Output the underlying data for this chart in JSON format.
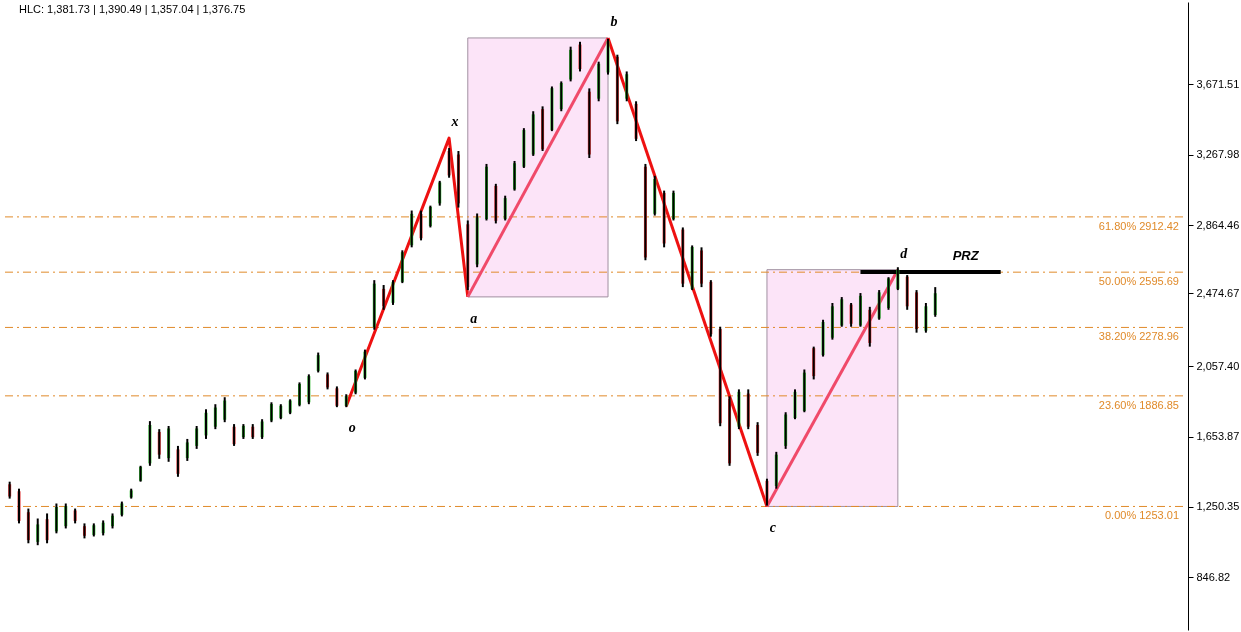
{
  "chart_data": {
    "type": "candlestick",
    "tick_labels": "y",
    "ylim": [
      545,
      4144
    ],
    "yticks": [
      846.82,
      {
        "value": 1250.35,
        "label": "1,250.35"
      },
      {
        "value": 1653.87,
        "label": "1,653.87"
      },
      {
        "value": 2057.4,
        "label": "2,057.40"
      },
      {
        "value": 2474.67,
        "label": "2,474.67"
      },
      {
        "value": 2864.46,
        "label": "2,864.46"
      },
      {
        "value": 3267.98,
        "label": "3,267.98"
      },
      {
        "value": 3671.51,
        "label": "3,671.51"
      }
    ],
    "categories": [
      null,
      null,
      null,
      null,
      null,
      null,
      null,
      null,
      null,
      null,
      null,
      null,
      null,
      null,
      null,
      null,
      null,
      null,
      null,
      null,
      null,
      null,
      null,
      null,
      null,
      null,
      null,
      null,
      null,
      null,
      null,
      null,
      null,
      null,
      null,
      null,
      null,
      null,
      null,
      null,
      null,
      null,
      null,
      null,
      null,
      null,
      null,
      null,
      null,
      null,
      null,
      null,
      null,
      null,
      null,
      null,
      null,
      null,
      null,
      null,
      null,
      null,
      null,
      null,
      null,
      null,
      null,
      null,
      null,
      null,
      null,
      null,
      null,
      null,
      null,
      null,
      null,
      null,
      null,
      null,
      null,
      null,
      null,
      null,
      null,
      null,
      null,
      null,
      null,
      null,
      null,
      null,
      null,
      null,
      null,
      null,
      null,
      null,
      null,
      null,
      null,
      null,
      null,
      null,
      null,
      null,
      null,
      null,
      null,
      null,
      null,
      null,
      null,
      null,
      null,
      null,
      null,
      null,
      null,
      null,
      null,
      null,
      null,
      null,
      null,
      null
    ],
    "ohlc": [
      [
        1380,
        1395,
        1298,
        1310
      ],
      [
        1340,
        1355,
        1156,
        1170
      ],
      [
        1220,
        1241,
        1042,
        1060
      ],
      [
        1050,
        1184,
        1031,
        1150
      ],
      [
        1180,
        1213,
        1042,
        1060
      ],
      [
        1110,
        1270,
        1099,
        1250
      ],
      [
        1140,
        1270,
        1127,
        1255
      ],
      [
        1230,
        1241,
        1156,
        1170
      ],
      [
        1140,
        1156,
        1070,
        1085
      ],
      [
        1090,
        1156,
        1081,
        1145
      ],
      [
        1100,
        1173,
        1087,
        1160
      ],
      [
        1140,
        1213,
        1127,
        1200
      ],
      [
        1205,
        1281,
        1196,
        1270
      ],
      [
        1305,
        1355,
        1298,
        1345
      ],
      [
        1400,
        1486,
        1395,
        1480
      ],
      [
        1500,
        1742,
        1486,
        1720
      ],
      [
        1680,
        1696,
        1526,
        1550
      ],
      [
        1530,
        1714,
        1509,
        1700
      ],
      [
        1580,
        1600,
        1423,
        1440
      ],
      [
        1530,
        1640,
        1514,
        1620
      ],
      [
        1600,
        1714,
        1583,
        1700
      ],
      [
        1660,
        1810,
        1640,
        1790
      ],
      [
        1710,
        1839,
        1696,
        1820
      ],
      [
        1750,
        1879,
        1736,
        1860
      ],
      [
        1710,
        1725,
        1600,
        1610
      ],
      [
        1650,
        1725,
        1640,
        1715
      ],
      [
        1710,
        1725,
        1640,
        1650
      ],
      [
        1650,
        1753,
        1640,
        1740
      ],
      [
        1745,
        1850,
        1736,
        1840
      ],
      [
        1760,
        1839,
        1753,
        1830
      ],
      [
        1790,
        1867,
        1782,
        1860
      ],
      [
        1835,
        1964,
        1827,
        1955
      ],
      [
        1850,
        2010,
        1839,
        2000
      ],
      [
        2030,
        2135,
        2021,
        2120
      ],
      [
        2010,
        2021,
        1924,
        1935
      ],
      [
        1930,
        1941,
        1822,
        1830
      ],
      [
        1830,
        1896,
        1822,
        1885
      ],
      [
        1905,
        2038,
        1896,
        2030
      ],
      [
        1990,
        2152,
        1981,
        2140
      ],
      [
        2280,
        2550,
        2266,
        2530
      ],
      [
        2500,
        2522,
        2380,
        2400
      ],
      [
        2420,
        2550,
        2408,
        2540
      ],
      [
        2540,
        2721,
        2533,
        2710
      ],
      [
        2750,
        2949,
        2738,
        2930
      ],
      [
        2930,
        2949,
        2778,
        2790
      ],
      [
        2860,
        2977,
        2852,
        2970
      ],
      [
        2990,
        3119,
        2977,
        3110
      ],
      [
        3290,
        3307,
        3137,
        3150
      ],
      [
        3270,
        3290,
        2966,
        2990
      ],
      [
        2870,
        2892,
        2493,
        2510
      ],
      [
        2640,
        2932,
        2624,
        2910
      ],
      [
        2900,
        3216,
        2892,
        3200
      ],
      [
        3090,
        3102,
        2875,
        2890
      ],
      [
        2900,
        3034,
        2892,
        3020
      ],
      [
        3070,
        3233,
        3063,
        3220
      ],
      [
        3200,
        3421,
        3193,
        3410
      ],
      [
        3270,
        3518,
        3262,
        3500
      ],
      [
        3530,
        3546,
        3290,
        3300
      ],
      [
        3410,
        3660,
        3404,
        3650
      ],
      [
        3530,
        3689,
        3518,
        3680
      ],
      [
        3700,
        3888,
        3689,
        3870
      ],
      [
        3900,
        3916,
        3746,
        3760
      ],
      [
        3630,
        3649,
        3250,
        3270
      ],
      [
        3590,
        3802,
        3575,
        3790
      ],
      [
        3740,
        3933,
        3728,
        3920
      ],
      [
        3830,
        3842,
        3444,
        3460
      ],
      [
        3590,
        3746,
        3575,
        3730
      ],
      [
        3560,
        3575,
        3347,
        3360
      ],
      [
        3200,
        3216,
        2664,
        2680
      ],
      [
        2930,
        3148,
        2920,
        3130
      ],
      [
        3050,
        3063,
        2738,
        2760
      ],
      [
        2900,
        3063,
        2892,
        3050
      ],
      [
        2840,
        2852,
        2510,
        2530
      ],
      [
        2500,
        2749,
        2493,
        2740
      ],
      [
        2720,
        2738,
        2510,
        2530
      ],
      [
        2540,
        2550,
        2226,
        2240
      ],
      [
        2270,
        2283,
        1713,
        1730
      ],
      [
        1870,
        1884,
        1486,
        1500
      ],
      [
        1710,
        1924,
        1696,
        1910
      ],
      [
        1900,
        1924,
        1696,
        1710
      ],
      [
        1720,
        1736,
        1543,
        1560
      ],
      [
        1400,
        1412,
        1258,
        1270
      ],
      [
        1370,
        1566,
        1355,
        1550
      ],
      [
        1600,
        1793,
        1583,
        1780
      ],
      [
        1760,
        1924,
        1753,
        1910
      ],
      [
        1800,
        2038,
        1793,
        2020
      ],
      [
        2160,
        2169,
        1981,
        2000
      ],
      [
        2120,
        2323,
        2112,
        2310
      ],
      [
        2220,
        2419,
        2209,
        2400
      ],
      [
        2290,
        2453,
        2283,
        2440
      ],
      [
        2410,
        2419,
        2283,
        2300
      ],
      [
        2290,
        2476,
        2283,
        2460
      ],
      [
        2380,
        2397,
        2169,
        2190
      ],
      [
        2330,
        2493,
        2323,
        2480
      ],
      [
        2390,
        2567,
        2380,
        2560
      ],
      [
        2500,
        2624,
        2493,
        2610
      ],
      [
        2570,
        2579,
        2380,
        2400
      ],
      [
        2480,
        2493,
        2249,
        2270
      ],
      [
        2260,
        2419,
        2249,
        2400
      ],
      [
        2350,
        2510,
        2340,
        2475
      ],
      null,
      null,
      null,
      null,
      null,
      null,
      null,
      null,
      null,
      null,
      null,
      null,
      null,
      null,
      null,
      null,
      null,
      null,
      null,
      null,
      null,
      null,
      null,
      null,
      null,
      null
    ],
    "series": [
      {
        "type": "line",
        "color": "#ee1111",
        "values": [
          null,
          null,
          null,
          null,
          null,
          null,
          null,
          null,
          null,
          null,
          null,
          null,
          null,
          null,
          null,
          null,
          null,
          null,
          null,
          null,
          null,
          null,
          null,
          null,
          null,
          null,
          null,
          null,
          null,
          null,
          null,
          null,
          null,
          null,
          null,
          null,
          1827,
          null,
          null,
          null,
          null,
          null,
          null,
          null,
          null,
          null,
          null,
          3364,
          null,
          2454,
          null,
          null,
          null,
          null,
          null,
          null,
          null,
          null,
          null,
          null,
          null,
          null,
          null,
          null,
          null,
          null,
          null,
          null,
          null,
          null,
          null,
          null,
          null,
          null,
          null,
          null,
          null,
          null,
          null,
          null,
          null,
          null,
          null,
          null,
          null,
          null,
          null,
          null,
          null,
          null,
          null,
          null,
          null,
          null,
          null,
          null,
          null,
          null,
          null,
          null,
          null,
          null,
          null,
          null,
          null,
          null,
          null,
          null,
          null,
          null,
          null,
          null,
          null,
          null,
          null,
          null,
          null,
          null,
          null,
          null,
          null,
          null,
          null,
          null,
          null,
          null
        ]
      },
      {
        "type": "line",
        "color": "#f04a6a",
        "values": [
          null,
          null,
          null,
          null,
          null,
          null,
          null,
          null,
          null,
          null,
          null,
          null,
          null,
          null,
          null,
          null,
          null,
          null,
          null,
          null,
          null,
          null,
          null,
          null,
          null,
          null,
          null,
          null,
          null,
          null,
          null,
          null,
          null,
          null,
          null,
          null,
          null,
          null,
          null,
          null,
          null,
          null,
          null,
          null,
          null,
          null,
          null,
          null,
          null,
          2454,
          null,
          null,
          null,
          null,
          null,
          null,
          null,
          null,
          null,
          null,
          null,
          null,
          null,
          null,
          3938,
          null,
          null,
          null,
          null,
          null,
          null,
          null,
          null,
          null,
          null,
          null,
          null,
          null,
          null,
          null,
          null,
          null,
          null,
          null,
          null,
          null,
          null,
          null,
          null,
          null,
          null,
          null,
          null,
          null,
          null,
          null,
          null,
          null,
          null,
          null,
          null,
          null,
          null,
          null,
          null,
          null,
          null,
          null,
          null,
          null,
          null,
          null,
          null,
          null,
          null,
          null,
          null,
          null,
          null,
          null,
          null,
          null,
          null,
          null,
          null,
          null
        ]
      },
      {
        "type": "line",
        "color": "#ee1111",
        "values": [
          null,
          null,
          null,
          null,
          null,
          null,
          null,
          null,
          null,
          null,
          null,
          null,
          null,
          null,
          null,
          null,
          null,
          null,
          null,
          null,
          null,
          null,
          null,
          null,
          null,
          null,
          null,
          null,
          null,
          null,
          null,
          null,
          null,
          null,
          null,
          null,
          null,
          null,
          null,
          null,
          null,
          null,
          null,
          null,
          null,
          null,
          null,
          null,
          null,
          null,
          null,
          null,
          null,
          null,
          null,
          null,
          null,
          null,
          null,
          null,
          null,
          null,
          null,
          null,
          3938,
          null,
          null,
          null,
          null,
          null,
          null,
          null,
          null,
          null,
          null,
          null,
          null,
          null,
          null,
          null,
          null,
          1253,
          null,
          null,
          null,
          null,
          null,
          null,
          null,
          null,
          null,
          null,
          null,
          null,
          null,
          null,
          null,
          null,
          null,
          null,
          null,
          null,
          null,
          null,
          null,
          null,
          null,
          null,
          null,
          null,
          null,
          null,
          null,
          null,
          null,
          null,
          null,
          null,
          null,
          null,
          null,
          null,
          null,
          null,
          null,
          null
        ]
      },
      {
        "type": "line",
        "color": "#f04a6a",
        "values": [
          null,
          null,
          null,
          null,
          null,
          null,
          null,
          null,
          null,
          null,
          null,
          null,
          null,
          null,
          null,
          null,
          null,
          null,
          null,
          null,
          null,
          null,
          null,
          null,
          null,
          null,
          null,
          null,
          null,
          null,
          null,
          null,
          null,
          null,
          null,
          null,
          null,
          null,
          null,
          null,
          null,
          null,
          null,
          null,
          null,
          null,
          null,
          null,
          null,
          null,
          null,
          null,
          null,
          null,
          null,
          null,
          null,
          null,
          null,
          null,
          null,
          null,
          null,
          null,
          null,
          null,
          null,
          null,
          null,
          null,
          null,
          null,
          null,
          null,
          null,
          null,
          null,
          null,
          null,
          null,
          null,
          1253,
          null,
          null,
          null,
          null,
          null,
          null,
          null,
          null,
          null,
          null,
          null,
          null,
          null,
          2610,
          null,
          null,
          null,
          null,
          null,
          null,
          null,
          null,
          null,
          null,
          null,
          null,
          null,
          null,
          null,
          null,
          null,
          null,
          null,
          null,
          null,
          null,
          null,
          null,
          null,
          null,
          null,
          null,
          null,
          null
        ]
      },
      {
        "type": "line",
        "name": "PRZ",
        "color": "#000000",
        "values": [
          null,
          null,
          null,
          null,
          null,
          null,
          null,
          null,
          null,
          null,
          null,
          null,
          null,
          null,
          null,
          null,
          null,
          null,
          null,
          null,
          null,
          null,
          null,
          null,
          null,
          null,
          null,
          null,
          null,
          null,
          null,
          null,
          null,
          null,
          null,
          null,
          null,
          null,
          null,
          null,
          null,
          null,
          null,
          null,
          null,
          null,
          null,
          null,
          null,
          null,
          null,
          null,
          null,
          null,
          null,
          null,
          null,
          null,
          null,
          null,
          null,
          null,
          null,
          null,
          null,
          null,
          null,
          null,
          null,
          null,
          null,
          null,
          null,
          null,
          null,
          null,
          null,
          null,
          null,
          null,
          null,
          null,
          null,
          null,
          null,
          null,
          null,
          null,
          null,
          null,
          null,
          2596,
          2596,
          2596,
          2596,
          2596,
          2596,
          2596,
          2596,
          2596,
          2596,
          2596,
          2596,
          2596,
          2596,
          2596,
          2596,
          null,
          null,
          null,
          null,
          null,
          null,
          null,
          null,
          null,
          null,
          null,
          null,
          null,
          null,
          null,
          null,
          null,
          null,
          null
        ]
      }
    ],
    "ref_lines": [
      {
        "axis": "y",
        "value": 2912.42,
        "label": "61.80% 2912.42",
        "color": "#e08a2a",
        "line_style": "dashed"
      },
      {
        "axis": "y",
        "value": 2595.69,
        "label": "50.00% 2595.69",
        "color": "#e08a2a",
        "line_style": "dashed"
      },
      {
        "axis": "y",
        "value": 2278.96,
        "label": "38.20% 2278.96",
        "color": "#e08a2a",
        "line_style": "dashed"
      },
      {
        "axis": "y",
        "value": 1886.85,
        "label": "23.60% 1886.85",
        "color": "#e08a2a",
        "line_style": "dashed"
      },
      {
        "axis": "y",
        "value": 1253.01,
        "label": "0.00% 1253.01",
        "color": "#e08a2a",
        "line_style": "dashed"
      }
    ],
    "annotations": [
      "HLC: 1,381.73 | 1,390.49 | 1,357.04 | 1,376.75",
      "o",
      "x",
      "a",
      "b",
      "c",
      "d"
    ]
  }
}
